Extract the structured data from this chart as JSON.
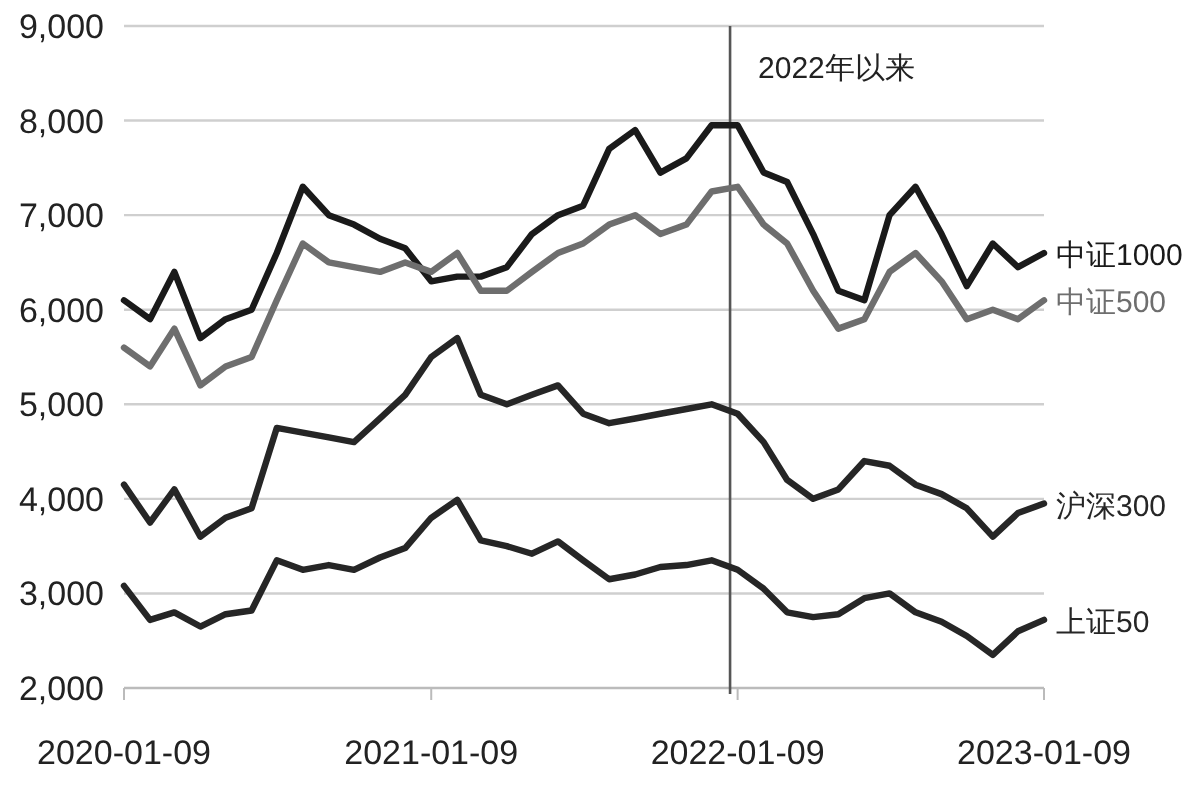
{
  "chart_data": {
    "type": "line",
    "x": [
      "2020-01-09",
      "2020-02-09",
      "2020-03-09",
      "2020-04-09",
      "2020-05-09",
      "2020-06-09",
      "2020-07-09",
      "2020-08-09",
      "2020-09-09",
      "2020-10-09",
      "2020-11-09",
      "2020-12-09",
      "2021-01-09",
      "2021-02-09",
      "2021-03-09",
      "2021-04-09",
      "2021-05-09",
      "2021-06-09",
      "2021-07-09",
      "2021-08-09",
      "2021-09-09",
      "2021-10-09",
      "2021-11-09",
      "2021-12-09",
      "2022-01-09",
      "2022-02-09",
      "2022-03-09",
      "2022-04-09",
      "2022-05-09",
      "2022-06-09",
      "2022-07-09",
      "2022-08-09",
      "2022-09-09",
      "2022-10-09",
      "2022-11-09",
      "2022-12-09",
      "2023-01-09"
    ],
    "series": [
      {
        "name": "中证1000",
        "color": "#1a1a1a",
        "values": [
          6100,
          5900,
          6400,
          5700,
          5900,
          6000,
          6600,
          7300,
          7000,
          6900,
          6750,
          6650,
          6300,
          6350,
          6350,
          6450,
          6800,
          7000,
          7100,
          7700,
          7900,
          7450,
          7600,
          7950,
          7950,
          7450,
          7350,
          6800,
          6200,
          6100,
          7000,
          7300,
          6800,
          6250,
          6700,
          6450,
          6600
        ]
      },
      {
        "name": "中证500",
        "color": "#6e6e6e",
        "values": [
          5600,
          5400,
          5800,
          5200,
          5400,
          5500,
          6100,
          6700,
          6500,
          6450,
          6400,
          6500,
          6400,
          6600,
          6200,
          6200,
          6400,
          6600,
          6700,
          6900,
          7000,
          6800,
          6900,
          7250,
          7300,
          6900,
          6700,
          6200,
          5800,
          5900,
          6400,
          6600,
          6300,
          5900,
          6000,
          5900,
          6100
        ]
      },
      {
        "name": "沪深300",
        "color": "#262626",
        "values": [
          4150,
          3750,
          4100,
          3600,
          3800,
          3900,
          4750,
          4700,
          4650,
          4600,
          4850,
          5100,
          5500,
          5700,
          5100,
          5000,
          5100,
          5200,
          4900,
          4800,
          4850,
          4900,
          4950,
          5000,
          4900,
          4600,
          4200,
          4000,
          4100,
          4400,
          4350,
          4150,
          4050,
          3900,
          3600,
          3850,
          3950
        ]
      },
      {
        "name": "上证50",
        "color": "#262626",
        "values": [
          3080,
          2720,
          2800,
          2650,
          2780,
          2820,
          3350,
          3250,
          3300,
          3250,
          3380,
          3480,
          3800,
          3990,
          3560,
          3500,
          3420,
          3550,
          3350,
          3150,
          3200,
          3280,
          3300,
          3350,
          3250,
          3050,
          2800,
          2750,
          2780,
          2950,
          3000,
          2800,
          2700,
          2550,
          2350,
          2600,
          2720
        ]
      }
    ],
    "xlim": [
      "2020-01-09",
      "2023-01-09"
    ],
    "xticks": [
      "2020-01-09",
      "2021-01-09",
      "2022-01-09",
      "2023-01-09"
    ],
    "ylim": [
      2000,
      9000
    ],
    "yticks": [
      {
        "value": 2000,
        "label": "2,000"
      },
      {
        "value": 3000,
        "label": "3,000"
      },
      {
        "value": 4000,
        "label": "4,000"
      },
      {
        "value": 5000,
        "label": "5,000"
      },
      {
        "value": 6000,
        "label": "6,000"
      },
      {
        "value": 7000,
        "label": "7,000"
      },
      {
        "value": 8000,
        "label": "8,000"
      },
      {
        "value": 9000,
        "label": "9,000"
      }
    ],
    "grid": "y",
    "legend": false,
    "ref_lines": [
      {
        "axis": "x",
        "value": "2021-12-31",
        "label": "2022年以来",
        "color": "#555555"
      }
    ]
  }
}
